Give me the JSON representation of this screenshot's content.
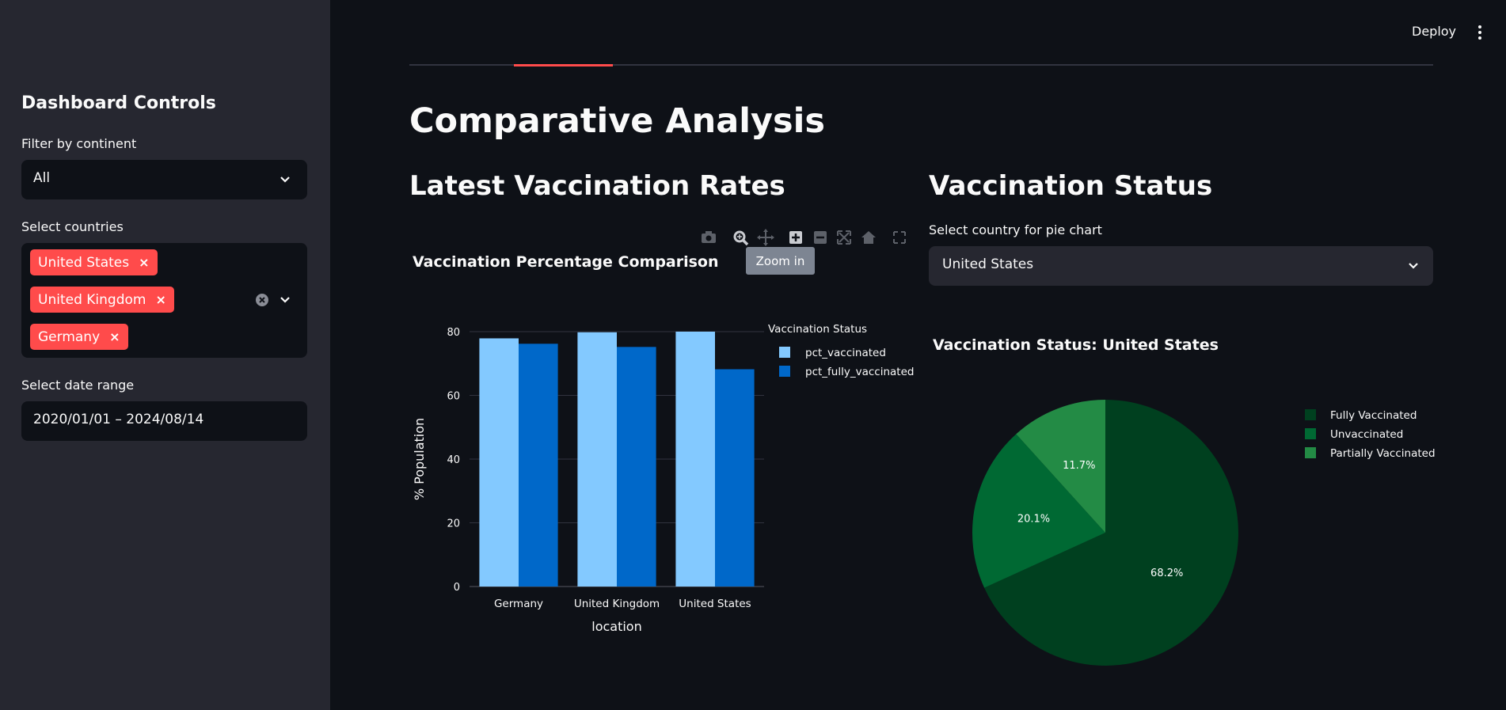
{
  "sidebar": {
    "title": "Dashboard Controls",
    "continent": {
      "label": "Filter by continent",
      "value": "All"
    },
    "countries": {
      "label": "Select countries",
      "tags": [
        "United States",
        "United Kingdom",
        "Germany"
      ]
    },
    "date_range": {
      "label": "Select date range",
      "value": "2020/01/01 – 2024/08/14"
    }
  },
  "header": {
    "deploy_label": "Deploy"
  },
  "main": {
    "title": "Comparative Analysis",
    "left": {
      "heading": "Latest Vaccination Rates"
    },
    "right": {
      "heading": "Vaccination Status",
      "select_label": "Select country for pie chart",
      "select_value": "United States"
    }
  },
  "tooltip": "Zoom in",
  "chart_data": [
    {
      "type": "bar",
      "title": "Vaccination Percentage Comparison",
      "xlabel": "location",
      "ylabel": "% Population",
      "categories": [
        "Germany",
        "United Kingdom",
        "United States"
      ],
      "ylim": [
        0,
        80
      ],
      "yticks": [
        0,
        20,
        40,
        60,
        80
      ],
      "legend_title": "Vaccination Status",
      "legend_position": "top-right",
      "grid": true,
      "series": [
        {
          "name": "pct_vaccinated",
          "color": "#83c9ff",
          "values": [
            77.9,
            79.8,
            80.0
          ]
        },
        {
          "name": "pct_fully_vaccinated",
          "color": "#0068c9",
          "values": [
            76.2,
            75.2,
            68.2
          ]
        }
      ]
    },
    {
      "type": "pie",
      "title": "Vaccination Status: United States",
      "legend_position": "top-right",
      "slices": [
        {
          "name": "Fully Vaccinated",
          "value": 68.2,
          "label": "68.2%",
          "color": "#00401f"
        },
        {
          "name": "Unvaccinated",
          "value": 20.1,
          "label": "20.1%",
          "color": "#006933"
        },
        {
          "name": "Partially Vaccinated",
          "value": 11.7,
          "label": "11.7%",
          "color": "#238b45"
        }
      ]
    }
  ]
}
